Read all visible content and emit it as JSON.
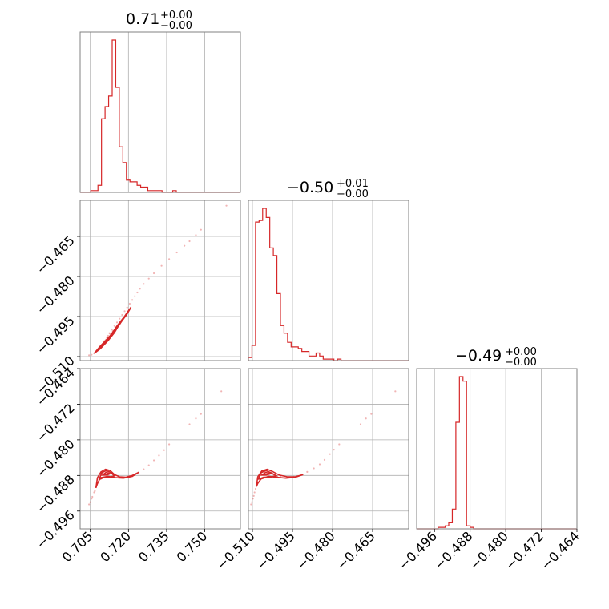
{
  "colors": {
    "series": "#d62728",
    "grid": "#b0b0b0",
    "frame": "#808080"
  },
  "titles": [
    {
      "value": "0.71",
      "plus": "+0.00",
      "minus": "−0.00"
    },
    {
      "value": "−0.50",
      "plus": "+0.01",
      "minus": "−0.00"
    },
    {
      "value": "−0.49",
      "plus": "+0.00",
      "minus": "−0.00"
    }
  ],
  "chart_data": {
    "type": "corner",
    "grid": true,
    "params": [
      {
        "range": [
          0.701,
          0.764
        ],
        "ticks": [
          0.705,
          0.72,
          0.735,
          0.75
        ],
        "tick_labels": [
          "0.705",
          "0.720",
          "0.735",
          "0.750"
        ]
      },
      {
        "range": [
          -0.5115,
          -0.4515
        ],
        "ticks": [
          -0.51,
          -0.495,
          -0.48,
          -0.465
        ],
        "tick_labels": [
          "−0.510",
          "−0.495",
          "−0.480",
          "−0.465"
        ]
      },
      {
        "range": [
          -0.5,
          -0.464
        ],
        "ticks": [
          -0.496,
          -0.488,
          -0.48,
          -0.472,
          -0.464
        ],
        "tick_labels": [
          "−0.496",
          "−0.488",
          "−0.480",
          "−0.472",
          "−0.464"
        ]
      }
    ],
    "histograms": [
      {
        "param": 0,
        "bin_edges": [
          0.701,
          0.7024,
          0.7038,
          0.7052,
          0.7066,
          0.708,
          0.7094,
          0.7108,
          0.7122,
          0.7136,
          0.715,
          0.7164,
          0.7178,
          0.7192,
          0.7206,
          0.722,
          0.7234,
          0.7248,
          0.7262,
          0.7276,
          0.729,
          0.7304,
          0.7318,
          0.7332,
          0.7346,
          0.736,
          0.7374,
          0.7388,
          0.7402,
          0.7416,
          0.743,
          0.7444,
          0.7458,
          0.7472,
          0.7486,
          0.75,
          0.7514,
          0.7528,
          0.7542,
          0.7556,
          0.757,
          0.7584,
          0.7598,
          0.7612,
          0.7626,
          0.764
        ],
        "counts": [
          0,
          0,
          0,
          1,
          1,
          4,
          42,
          49,
          55,
          87,
          60,
          26,
          17,
          7,
          6,
          6,
          4,
          3,
          3,
          1,
          1,
          1,
          1,
          0,
          0,
          0,
          1,
          0,
          0,
          0,
          0,
          0,
          0,
          0,
          0,
          0,
          0,
          0,
          0,
          0,
          0,
          0,
          0,
          0,
          0
        ]
      },
      {
        "param": 1,
        "bin_edges": [
          -0.5115,
          -0.51017,
          -0.50883,
          -0.5075,
          -0.50617,
          -0.50483,
          -0.5035,
          -0.50217,
          -0.50083,
          -0.4995,
          -0.49817,
          -0.49683,
          -0.4955,
          -0.49417,
          -0.49283,
          -0.4915,
          -0.49017,
          -0.48883,
          -0.4875,
          -0.48617,
          -0.48483,
          -0.4835,
          -0.48217,
          -0.48083,
          -0.4795,
          -0.47817,
          -0.47683,
          -0.4755,
          -0.47417,
          -0.47283,
          -0.4715,
          -0.47017,
          -0.46883,
          -0.4675,
          -0.46617,
          -0.46483,
          -0.4635,
          -0.46217,
          -0.46083,
          -0.4595,
          -0.45817,
          -0.45683,
          -0.4555,
          -0.45417,
          -0.45283,
          -0.4515
        ],
        "counts": [
          2,
          10,
          91,
          92,
          100,
          94,
          74,
          69,
          44,
          23,
          18,
          12,
          9,
          9,
          8,
          6,
          6,
          3,
          3,
          5,
          3,
          1,
          1,
          1,
          0,
          1,
          0,
          0,
          0,
          0,
          0,
          0,
          0,
          0,
          0,
          0,
          0,
          0,
          0,
          0,
          0,
          0,
          0,
          0,
          0
        ]
      },
      {
        "param": 2,
        "bin_edges": [
          -0.5,
          -0.4992,
          -0.4984,
          -0.4976,
          -0.4968,
          -0.496,
          -0.4952,
          -0.4944,
          -0.4936,
          -0.4928,
          -0.492,
          -0.4912,
          -0.4904,
          -0.4896,
          -0.4888,
          -0.488,
          -0.4872,
          -0.4864,
          -0.4856,
          -0.4848,
          -0.484,
          -0.4832,
          -0.4824,
          -0.4816,
          -0.4808,
          -0.48,
          -0.4792,
          -0.4784,
          -0.4776,
          -0.4768,
          -0.476,
          -0.4752,
          -0.4744,
          -0.4736,
          -0.4728,
          -0.472,
          -0.4712,
          -0.4704,
          -0.4696,
          -0.4688,
          -0.468,
          -0.4672,
          -0.4664,
          -0.4656,
          -0.4648,
          -0.464
        ],
        "counts": [
          0,
          0,
          0,
          0,
          0,
          0,
          1,
          1,
          2,
          4,
          13,
          70,
          100,
          97,
          2,
          1,
          0,
          0,
          0,
          0,
          0,
          0,
          0,
          0,
          0,
          0,
          0,
          0,
          0,
          0,
          0,
          0,
          0,
          0,
          0,
          0,
          0,
          0,
          0,
          0,
          0,
          0,
          0,
          0,
          0
        ]
      }
    ],
    "scatter_2d": [
      {
        "x_param": 0,
        "y_param": 1,
        "points": [
          [
            0.7045,
            -0.5095
          ],
          [
            0.7055,
            -0.5093
          ],
          [
            0.7065,
            -0.5088
          ],
          [
            0.7072,
            -0.5082
          ],
          [
            0.7078,
            -0.5078
          ],
          [
            0.7085,
            -0.5072
          ],
          [
            0.709,
            -0.5064
          ],
          [
            0.7098,
            -0.5054
          ],
          [
            0.7105,
            -0.5042
          ],
          [
            0.7115,
            -0.5028
          ],
          [
            0.7125,
            -0.5012
          ],
          [
            0.7135,
            -0.4998
          ],
          [
            0.7145,
            -0.4985
          ],
          [
            0.7155,
            -0.4972
          ],
          [
            0.7165,
            -0.4958
          ],
          [
            0.7175,
            -0.4944
          ],
          [
            0.7185,
            -0.493
          ],
          [
            0.7195,
            -0.4916
          ],
          [
            0.7205,
            -0.4902
          ],
          [
            0.7215,
            -0.4888
          ],
          [
            0.7225,
            -0.4874
          ],
          [
            0.7235,
            -0.486
          ],
          [
            0.7245,
            -0.4846
          ],
          [
            0.726,
            -0.4828
          ],
          [
            0.728,
            -0.4808
          ],
          [
            0.73,
            -0.4788
          ],
          [
            0.733,
            -0.476
          ],
          [
            0.736,
            -0.4735
          ],
          [
            0.739,
            -0.471
          ],
          [
            0.742,
            -0.4685
          ],
          [
            0.744,
            -0.4668
          ],
          [
            0.7465,
            -0.4645
          ],
          [
            0.7485,
            -0.4625
          ],
          [
            0.7585,
            -0.4535
          ],
          [
            0.7108,
            -0.5041
          ],
          [
            0.7112,
            -0.5036
          ],
          [
            0.712,
            -0.5022
          ],
          [
            0.7128,
            -0.5015
          ],
          [
            0.7138,
            -0.5004
          ],
          [
            0.7148,
            -0.499
          ]
        ],
        "contours": [
          [
            [
              0.7065,
              -0.5088
            ],
            [
              0.709,
              -0.507
            ],
            [
              0.712,
              -0.504
            ],
            [
              0.7145,
              -0.501
            ],
            [
              0.717,
              -0.497
            ],
            [
              0.7195,
              -0.4935
            ],
            [
              0.721,
              -0.4915
            ],
            [
              0.7195,
              -0.494
            ],
            [
              0.716,
              -0.4985
            ],
            [
              0.7125,
              -0.5025
            ],
            [
              0.709,
              -0.506
            ],
            [
              0.7065,
              -0.5088
            ]
          ],
          [
            [
              0.7085,
              -0.507
            ],
            [
              0.7105,
              -0.505
            ],
            [
              0.713,
              -0.502
            ],
            [
              0.7155,
              -0.4985
            ],
            [
              0.718,
              -0.4955
            ],
            [
              0.7165,
              -0.498
            ],
            [
              0.7135,
              -0.5015
            ],
            [
              0.711,
              -0.5045
            ],
            [
              0.7085,
              -0.507
            ]
          ],
          [
            [
              0.7115,
              -0.504
            ],
            [
              0.7135,
              -0.5015
            ],
            [
              0.7158,
              -0.4985
            ],
            [
              0.7142,
              -0.501
            ],
            [
              0.712,
              -0.5035
            ],
            [
              0.7115,
              -0.504
            ]
          ]
        ]
      },
      {
        "x_param": 0,
        "y_param": 2,
        "points": [
          [
            0.7045,
            -0.4945
          ],
          [
            0.7055,
            -0.4932
          ],
          [
            0.7065,
            -0.4918
          ],
          [
            0.7075,
            -0.4902
          ],
          [
            0.7085,
            -0.4888
          ],
          [
            0.7095,
            -0.4875
          ],
          [
            0.711,
            -0.487
          ],
          [
            0.7125,
            -0.4874
          ],
          [
            0.714,
            -0.4878
          ],
          [
            0.716,
            -0.4882
          ],
          [
            0.718,
            -0.4884
          ],
          [
            0.72,
            -0.4882
          ],
          [
            0.722,
            -0.4878
          ],
          [
            0.724,
            -0.4873
          ],
          [
            0.726,
            -0.4866
          ],
          [
            0.728,
            -0.4857
          ],
          [
            0.73,
            -0.4846
          ],
          [
            0.732,
            -0.4835
          ],
          [
            0.734,
            -0.4823
          ],
          [
            0.736,
            -0.481
          ],
          [
            0.744,
            -0.4765
          ],
          [
            0.7465,
            -0.4752
          ],
          [
            0.7485,
            -0.4742
          ],
          [
            0.7565,
            -0.4691
          ],
          [
            0.705,
            -0.494
          ],
          [
            0.7058,
            -0.4928
          ],
          [
            0.7068,
            -0.4915
          ],
          [
            0.7078,
            -0.4898
          ]
        ],
        "contours": [
          [
            [
              0.7072,
              -0.4908
            ],
            [
              0.7078,
              -0.4885
            ],
            [
              0.7092,
              -0.4872
            ],
            [
              0.711,
              -0.4866
            ],
            [
              0.7128,
              -0.4869
            ],
            [
              0.7145,
              -0.4878
            ],
            [
              0.7165,
              -0.4883
            ],
            [
              0.719,
              -0.4884
            ],
            [
              0.7215,
              -0.488
            ],
            [
              0.724,
              -0.4873
            ],
            [
              0.7215,
              -0.4882
            ],
            [
              0.718,
              -0.4886
            ],
            [
              0.715,
              -0.4885
            ],
            [
              0.712,
              -0.4882
            ],
            [
              0.709,
              -0.4885
            ],
            [
              0.7078,
              -0.4898
            ],
            [
              0.7072,
              -0.4908
            ]
          ],
          [
            [
              0.7085,
              -0.4888
            ],
            [
              0.7095,
              -0.4874
            ],
            [
              0.7112,
              -0.4869
            ],
            [
              0.713,
              -0.4873
            ],
            [
              0.7145,
              -0.4881
            ],
            [
              0.7125,
              -0.4884
            ],
            [
              0.7105,
              -0.4884
            ],
            [
              0.709,
              -0.4888
            ],
            [
              0.7085,
              -0.4888
            ]
          ],
          [
            [
              0.7098,
              -0.4879
            ],
            [
              0.7112,
              -0.4873
            ],
            [
              0.7128,
              -0.4876
            ],
            [
              0.7115,
              -0.4879
            ],
            [
              0.7098,
              -0.4879
            ]
          ]
        ]
      },
      {
        "x_param": 1,
        "y_param": 2,
        "points": [
          [
            -0.5105,
            -0.4945
          ],
          [
            -0.5098,
            -0.4932
          ],
          [
            -0.5092,
            -0.4918
          ],
          [
            -0.5085,
            -0.4902
          ],
          [
            -0.5078,
            -0.4888
          ],
          [
            -0.5068,
            -0.4877
          ],
          [
            -0.5055,
            -0.4872
          ],
          [
            -0.504,
            -0.4875
          ],
          [
            -0.502,
            -0.4879
          ],
          [
            -0.4995,
            -0.4882
          ],
          [
            -0.497,
            -0.4884
          ],
          [
            -0.4945,
            -0.4883
          ],
          [
            -0.492,
            -0.4878
          ],
          [
            -0.4895,
            -0.4872
          ],
          [
            -0.487,
            -0.4864
          ],
          [
            -0.4848,
            -0.4855
          ],
          [
            -0.483,
            -0.4845
          ],
          [
            -0.481,
            -0.4832
          ],
          [
            -0.4795,
            -0.4822
          ],
          [
            -0.4775,
            -0.481
          ],
          [
            -0.4695,
            -0.4765
          ],
          [
            -0.4675,
            -0.4752
          ],
          [
            -0.4655,
            -0.4742
          ],
          [
            -0.4565,
            -0.4691
          ],
          [
            -0.5102,
            -0.494
          ],
          [
            -0.5095,
            -0.4926
          ],
          [
            -0.5088,
            -0.491
          ],
          [
            -0.5082,
            -0.4896
          ]
        ],
        "contours": [
          [
            [
              -0.5085,
              -0.4905
            ],
            [
              -0.508,
              -0.4883
            ],
            [
              -0.5065,
              -0.487
            ],
            [
              -0.5045,
              -0.4866
            ],
            [
              -0.5025,
              -0.4871
            ],
            [
              -0.5,
              -0.4879
            ],
            [
              -0.497,
              -0.4883
            ],
            [
              -0.494,
              -0.4883
            ],
            [
              -0.491,
              -0.4878
            ],
            [
              -0.494,
              -0.4884
            ],
            [
              -0.4975,
              -0.4886
            ],
            [
              -0.501,
              -0.4884
            ],
            [
              -0.504,
              -0.4882
            ],
            [
              -0.5068,
              -0.4888
            ],
            [
              -0.508,
              -0.4898
            ],
            [
              -0.5085,
              -0.4905
            ]
          ],
          [
            [
              -0.5078,
              -0.4888
            ],
            [
              -0.5068,
              -0.4874
            ],
            [
              -0.505,
              -0.4869
            ],
            [
              -0.503,
              -0.4874
            ],
            [
              -0.501,
              -0.4881
            ],
            [
              -0.5035,
              -0.4884
            ],
            [
              -0.5058,
              -0.4884
            ],
            [
              -0.5075,
              -0.4888
            ],
            [
              -0.5078,
              -0.4888
            ]
          ],
          [
            [
              -0.5065,
              -0.4879
            ],
            [
              -0.505,
              -0.4873
            ],
            [
              -0.5032,
              -0.4876
            ],
            [
              -0.5048,
              -0.4879
            ],
            [
              -0.5065,
              -0.4879
            ]
          ]
        ]
      }
    ]
  }
}
